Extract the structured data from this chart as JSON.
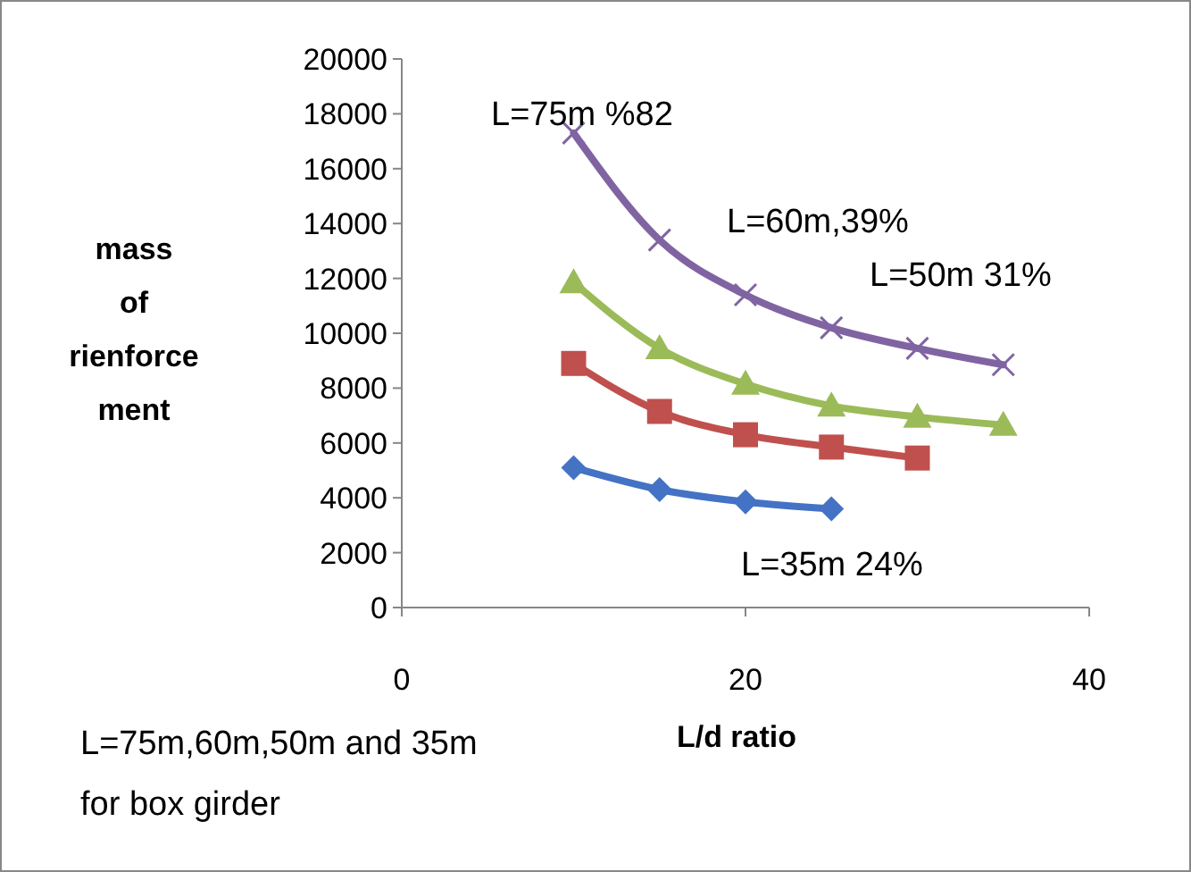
{
  "chart_data": {
    "type": "line",
    "xlabel": "L/d ratio",
    "ylabel": "mass of rienforcement",
    "xlim": [
      0,
      40
    ],
    "xticks": [
      0,
      20,
      40
    ],
    "ylim": [
      0,
      20000
    ],
    "yticks": [
      0,
      2000,
      4000,
      6000,
      8000,
      10000,
      12000,
      14000,
      16000,
      18000,
      20000
    ],
    "series": [
      {
        "color": "#4472c4",
        "marker": "diamond",
        "x": [
          10,
          15,
          20,
          25
        ],
        "values": [
          5100,
          4300,
          3850,
          3600
        ]
      },
      {
        "color": "#c0504d",
        "marker": "square",
        "x": [
          10,
          15,
          20,
          25,
          30
        ],
        "values": [
          8900,
          7150,
          6300,
          5850,
          5450
        ]
      },
      {
        "color": "#9bbb59",
        "marker": "triangle",
        "x": [
          10,
          15,
          20,
          25,
          30,
          35
        ],
        "values": [
          11850,
          9450,
          8150,
          7350,
          6950,
          6650
        ]
      },
      {
        "color": "#8064a2",
        "marker": "cross",
        "x": [
          10,
          15,
          20,
          25,
          30,
          35
        ],
        "values": [
          17300,
          13400,
          11400,
          10200,
          9450,
          8850
        ]
      }
    ],
    "annotations": [
      "L=75m %82",
      "L=60m,39%",
      "L=50m 31%",
      "L=35m 24%",
      "L=75m,60m,50m and 35m for box girder"
    ]
  }
}
